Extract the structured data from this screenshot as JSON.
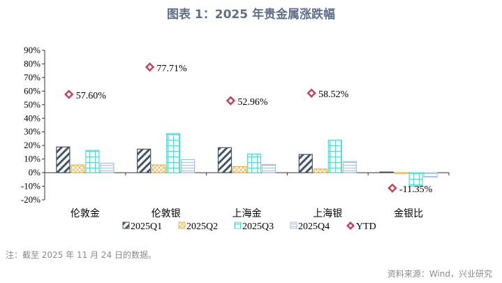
{
  "title": "图表 1：2025 年贵金属涨跌幅",
  "note": "注：截至 2025 年 11 月 24 日的数据。",
  "source": "资料来源：Wind，兴业研究",
  "chart_data": {
    "type": "bar",
    "categories": [
      "伦敦金",
      "伦敦银",
      "上海金",
      "上海银",
      "金银比"
    ],
    "ylim": [
      -20,
      90
    ],
    "yticks": [
      -20,
      -10,
      0,
      10,
      20,
      30,
      40,
      50,
      60,
      70,
      80,
      90
    ],
    "ytick_labels": [
      "-20%",
      "-10%",
      "0%",
      "10%",
      "20%",
      "30%",
      "40%",
      "50%",
      "60%",
      "70%",
      "80%",
      "90%"
    ],
    "legend_position": "bottom",
    "series": [
      {
        "name": "2025Q1",
        "color": "#44546a",
        "pattern": "diagonal",
        "values": [
          18.9,
          17.3,
          18.4,
          13.4,
          0.5
        ]
      },
      {
        "name": "2025Q2",
        "color": "#f0b040",
        "pattern": "crosshatch",
        "values": [
          5.7,
          5.7,
          4.5,
          2.7,
          -0.3
        ]
      },
      {
        "name": "2025Q3",
        "color": "#5cd6cc",
        "pattern": "grid",
        "values": [
          16.4,
          28.8,
          13.7,
          24.0,
          -10.1
        ]
      },
      {
        "name": "2025Q4",
        "color": "#a8bedc",
        "pattern": "horizontal",
        "values": [
          7.0,
          9.6,
          6.0,
          8.2,
          -3.2
        ]
      }
    ],
    "ytd": {
      "name": "YTD",
      "color": "#c8405a",
      "values": [
        57.6,
        77.71,
        52.96,
        58.52,
        -11.35
      ],
      "labels": [
        "57.60%",
        "77.71%",
        "52.96%",
        "58.52%",
        "-11.35%"
      ]
    }
  }
}
